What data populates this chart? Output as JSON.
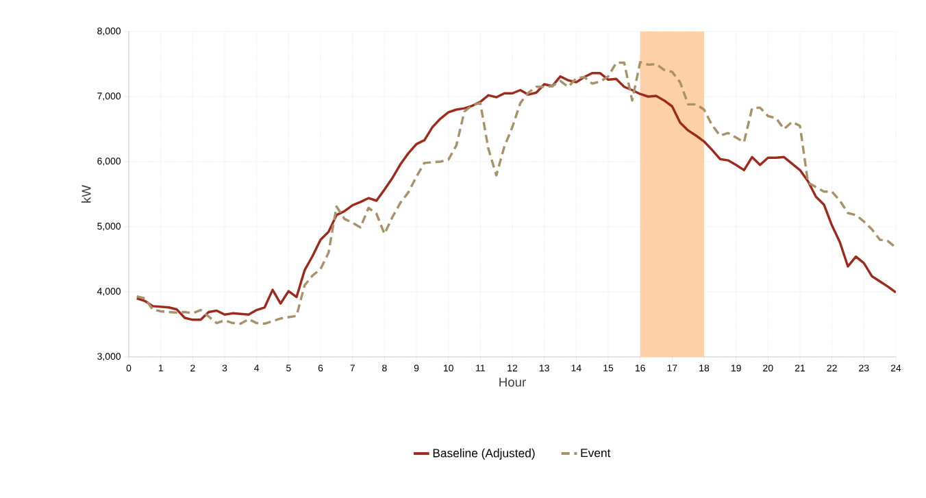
{
  "chart_data": {
    "type": "line",
    "xlabel": "Hour",
    "ylabel": "kW",
    "x": [
      0.25,
      0.5,
      0.75,
      1,
      1.25,
      1.5,
      1.75,
      2,
      2.25,
      2.5,
      2.75,
      3,
      3.25,
      3.5,
      3.75,
      4,
      4.25,
      4.5,
      4.75,
      5,
      5.25,
      5.5,
      5.75,
      6,
      6.25,
      6.5,
      6.75,
      7,
      7.25,
      7.5,
      7.75,
      8,
      8.25,
      8.5,
      8.75,
      9,
      9.25,
      9.5,
      9.75,
      10,
      10.25,
      10.5,
      10.75,
      11,
      11.25,
      11.5,
      11.75,
      12,
      12.25,
      12.5,
      12.75,
      13,
      13.25,
      13.5,
      13.75,
      14,
      14.25,
      14.5,
      14.75,
      15,
      15.25,
      15.5,
      15.75,
      16,
      16.25,
      16.5,
      16.75,
      17,
      17.25,
      17.5,
      17.75,
      18,
      18.25,
      18.5,
      18.75,
      19,
      19.25,
      19.5,
      19.75,
      20,
      20.25,
      20.5,
      20.75,
      21,
      21.25,
      21.5,
      21.75,
      22,
      22.25,
      22.5,
      22.75,
      23,
      23.25,
      23.5,
      23.75,
      24
    ],
    "series": [
      {
        "name": "Baseline (Adjusted)",
        "color": "#9e2a1c",
        "line_style": "solid",
        "values": [
          3900,
          3860,
          3780,
          3770,
          3760,
          3730,
          3600,
          3570,
          3570,
          3690,
          3710,
          3650,
          3670,
          3660,
          3650,
          3720,
          3760,
          4030,
          3820,
          4010,
          3920,
          4330,
          4550,
          4800,
          4920,
          5180,
          5240,
          5330,
          5380,
          5440,
          5400,
          5570,
          5750,
          5960,
          6130,
          6270,
          6330,
          6530,
          6660,
          6760,
          6800,
          6820,
          6860,
          6920,
          7020,
          6990,
          7050,
          7050,
          7100,
          7030,
          7060,
          7190,
          7160,
          7310,
          7250,
          7220,
          7300,
          7360,
          7360,
          7260,
          7270,
          7150,
          7100,
          7040,
          7000,
          7010,
          6940,
          6850,
          6600,
          6480,
          6400,
          6310,
          6180,
          6040,
          6020,
          5950,
          5870,
          6070,
          5950,
          6060,
          6060,
          6070,
          5970,
          5870,
          5700,
          5460,
          5340,
          5020,
          4760,
          4390,
          4540,
          4440,
          4240,
          4160,
          4080,
          3990
        ]
      },
      {
        "name": "Event",
        "color": "#a89269",
        "line_style": "dashed",
        "values": [
          3930,
          3900,
          3730,
          3700,
          3690,
          3680,
          3690,
          3670,
          3720,
          3620,
          3520,
          3560,
          3520,
          3510,
          3580,
          3520,
          3510,
          3550,
          3590,
          3610,
          3630,
          4100,
          4250,
          4350,
          4600,
          5310,
          5120,
          5060,
          4990,
          5290,
          5200,
          4890,
          5150,
          5370,
          5530,
          5770,
          5980,
          5990,
          6000,
          6030,
          6250,
          6770,
          6870,
          6900,
          6200,
          5790,
          6230,
          6530,
          6900,
          7060,
          7150,
          7150,
          7160,
          7240,
          7150,
          7280,
          7300,
          7200,
          7230,
          7310,
          7520,
          7520,
          6940,
          7530,
          7490,
          7500,
          7410,
          7380,
          7220,
          6880,
          6880,
          6800,
          6560,
          6400,
          6440,
          6370,
          6300,
          6820,
          6830,
          6700,
          6670,
          6500,
          6610,
          6550,
          5680,
          5610,
          5540,
          5540,
          5400,
          5210,
          5180,
          5080,
          4960,
          4800,
          4780,
          4680
        ]
      }
    ],
    "xlim": [
      0,
      24
    ],
    "ylim": [
      3000,
      8000
    ],
    "xticks": [
      0,
      1,
      2,
      3,
      4,
      5,
      6,
      7,
      8,
      9,
      10,
      11,
      12,
      13,
      14,
      15,
      16,
      17,
      18,
      19,
      20,
      21,
      22,
      23,
      24
    ],
    "yticks": [
      {
        "value": 3000,
        "label": "3,000"
      },
      {
        "value": 4000,
        "label": "4,000"
      },
      {
        "value": 5000,
        "label": "5,000"
      },
      {
        "value": 6000,
        "label": "6,000"
      },
      {
        "value": 7000,
        "label": "7,000"
      },
      {
        "value": 8000,
        "label": "8,000"
      }
    ],
    "bands": [
      {
        "axis": "x",
        "from": 16,
        "to": 18,
        "color": "#fdd0a8"
      }
    ],
    "grid": true,
    "legend": "bottom",
    "marker": "none"
  }
}
